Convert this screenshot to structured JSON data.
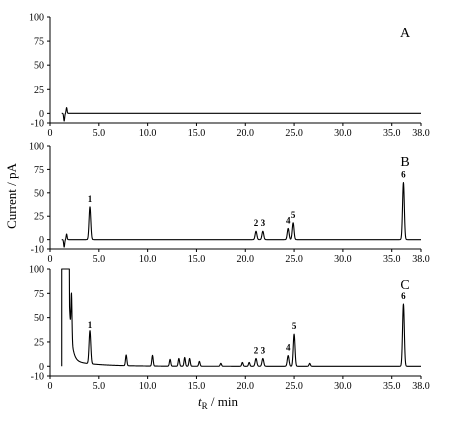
{
  "figure": {
    "ylabel": "Current / pA",
    "xlabel_main": "t",
    "xlabel_sub": "R",
    "xlabel_unit": " / min"
  },
  "chart_data": [
    {
      "type": "line",
      "panel": "A",
      "xlim": [
        0,
        38
      ],
      "ylim": [
        -10,
        100
      ],
      "x_ticks": [
        "0",
        "5.0",
        "10.0",
        "15.0",
        "20.0",
        "25.0",
        "30.0",
        "35.0",
        "38.0"
      ],
      "y_ticks": [
        "100",
        "75",
        "50",
        "25",
        "0",
        "-10"
      ],
      "baseline": 0,
      "main_peaks": [],
      "minor_peaks": [],
      "solvent_start": false,
      "injection_artifact": true
    },
    {
      "type": "line",
      "panel": "B",
      "xlim": [
        0,
        38
      ],
      "ylim": [
        -10,
        100
      ],
      "x_ticks": [
        "0",
        "5.0",
        "10.0",
        "15.0",
        "20.0",
        "25.0",
        "30.0",
        "35.0",
        "38.0"
      ],
      "y_ticks": [
        "100",
        "75",
        "50",
        "25",
        "0",
        "-10"
      ],
      "baseline": 0,
      "main_peaks": [
        {
          "label": "1",
          "x": 4.1,
          "y": 35
        },
        {
          "label": "2",
          "x": 21.1,
          "y": 9
        },
        {
          "label": "3",
          "x": 21.8,
          "y": 9
        },
        {
          "label": "4",
          "x": 24.4,
          "y": 12
        },
        {
          "label": "5",
          "x": 24.9,
          "y": 18
        },
        {
          "label": "6",
          "x": 36.2,
          "y": 61
        }
      ],
      "minor_peaks": [],
      "solvent_start": false,
      "injection_artifact": true
    },
    {
      "type": "line",
      "panel": "C",
      "xlim": [
        0,
        38
      ],
      "ylim": [
        -10,
        100
      ],
      "x_ticks": [
        "0",
        "5.0",
        "10.0",
        "15.0",
        "20.0",
        "25.0",
        "30.0",
        "35.0",
        "38.0"
      ],
      "y_ticks": [
        "100",
        "75",
        "50",
        "25",
        "0",
        "-10"
      ],
      "baseline": 0,
      "main_peaks": [
        {
          "label": "1",
          "x": 4.1,
          "y": 34
        },
        {
          "label": "2",
          "x": 21.1,
          "y": 8
        },
        {
          "label": "3",
          "x": 21.8,
          "y": 8
        },
        {
          "label": "4",
          "x": 24.4,
          "y": 11
        },
        {
          "label": "5",
          "x": 25.0,
          "y": 33
        },
        {
          "label": "6",
          "x": 36.2,
          "y": 64
        }
      ],
      "minor_peaks": [
        {
          "x": 7.8,
          "y": 11
        },
        {
          "x": 10.5,
          "y": 11
        },
        {
          "x": 12.3,
          "y": 7
        },
        {
          "x": 13.2,
          "y": 8
        },
        {
          "x": 13.8,
          "y": 9
        },
        {
          "x": 14.3,
          "y": 8
        },
        {
          "x": 15.3,
          "y": 5
        },
        {
          "x": 17.5,
          "y": 3
        },
        {
          "x": 19.7,
          "y": 4
        },
        {
          "x": 20.4,
          "y": 4
        },
        {
          "x": 26.6,
          "y": 3
        }
      ],
      "solvent_start": true,
      "injection_artifact": false
    }
  ]
}
